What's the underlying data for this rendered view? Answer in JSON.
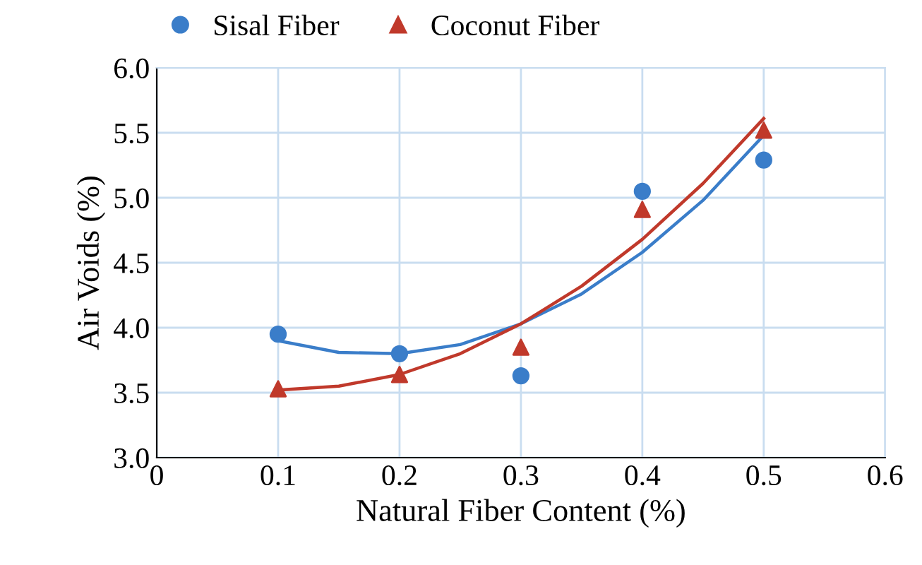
{
  "chart_data": {
    "type": "scatter",
    "xlabel": "Natural Fiber Content (%)",
    "ylabel": "Air Voids (%)",
    "x": [
      0.1,
      0.2,
      0.3,
      0.4,
      0.5
    ],
    "series": [
      {
        "name": "Sisal Fiber",
        "color": "#3a7dc9",
        "marker": "circle",
        "values": [
          3.95,
          3.8,
          3.63,
          5.05,
          5.29
        ]
      },
      {
        "name": "Coconut Fiber",
        "color": "#c0392b",
        "marker": "triangle",
        "values": [
          3.53,
          3.64,
          3.85,
          4.91,
          5.52
        ]
      },
      {
        "type": "line",
        "color": "#3a7dc9",
        "marker": "none",
        "x": [
          0.1,
          0.15,
          0.2,
          0.25,
          0.3,
          0.35,
          0.4,
          0.45,
          0.5
        ],
        "values": [
          3.9,
          3.81,
          3.8,
          3.87,
          4.03,
          4.26,
          4.58,
          4.98,
          5.48
        ]
      },
      {
        "type": "line",
        "color": "#c0392b",
        "marker": "none",
        "x": [
          0.1,
          0.15,
          0.2,
          0.25,
          0.3,
          0.35,
          0.4,
          0.45,
          0.5
        ],
        "values": [
          3.52,
          3.55,
          3.64,
          3.8,
          4.03,
          4.32,
          4.68,
          5.11,
          5.61
        ]
      }
    ],
    "xlim": [
      0,
      0.6
    ],
    "xticks": [
      0,
      0.1,
      0.2,
      0.3,
      0.4,
      0.5,
      0.6
    ],
    "ylim": [
      3.0,
      6.0
    ],
    "yticks": [
      {
        "value": 3.0,
        "label": "3.0"
      },
      3.5,
      {
        "value": 4.0,
        "label": "4.0"
      },
      4.5,
      {
        "value": 5.0,
        "label": "5.0"
      },
      5.5,
      {
        "value": 6.0,
        "label": "6.0"
      }
    ],
    "grid": true,
    "legend": "top"
  }
}
